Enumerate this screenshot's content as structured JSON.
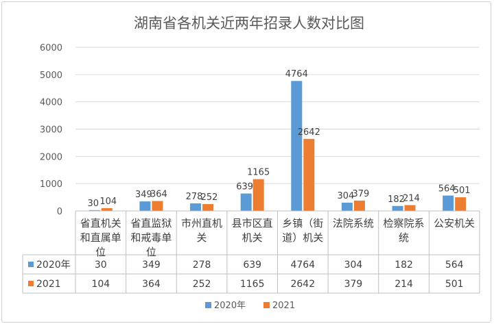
{
  "chart_data": {
    "type": "bar",
    "title": "湖南省各机关近两年招录人数对比图",
    "categories": [
      "省直机关和直属单位",
      "省直监狱和戒毒单位",
      "市州直机关",
      "县市区直机关",
      "乡镇（街道）机关",
      "法院系统",
      "检察院系统",
      "公安机关"
    ],
    "category_lines": [
      [
        "省直机关",
        "和直属单",
        "位"
      ],
      [
        "省直监狱",
        "和戒毒单",
        "位"
      ],
      [
        "市州直机",
        "关"
      ],
      [
        "县市区直",
        "机关"
      ],
      [
        "乡镇（街",
        "道）机关"
      ],
      [
        "法院系统"
      ],
      [
        "检察院系",
        "统"
      ],
      [
        "公安机关"
      ]
    ],
    "series": [
      {
        "name": "2020年",
        "values": [
          30,
          349,
          278,
          639,
          4764,
          304,
          182,
          564
        ],
        "color": "#5B9BD5"
      },
      {
        "name": "2021",
        "values": [
          104,
          364,
          252,
          1165,
          2642,
          379,
          214,
          501
        ],
        "color": "#ED7D31"
      }
    ],
    "ylim": [
      0,
      6000
    ],
    "yticks": [
      "0",
      "1000",
      "2000",
      "3000",
      "4000",
      "5000",
      "6000"
    ],
    "grid": true,
    "legend": "bottom",
    "data_table": true
  }
}
